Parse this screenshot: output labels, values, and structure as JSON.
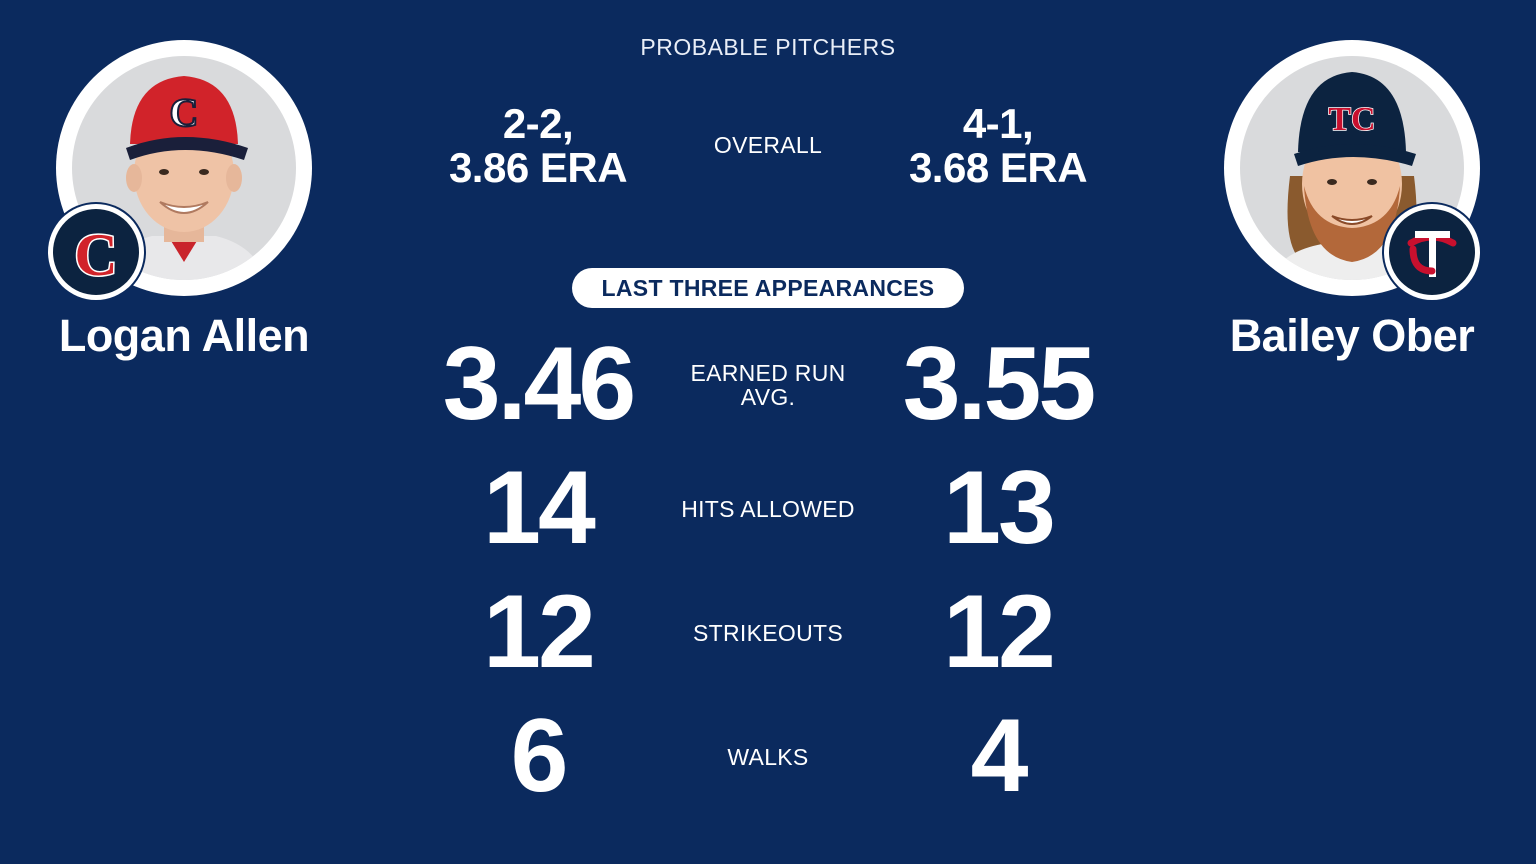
{
  "header": {
    "title": "PROBABLE PITCHERS"
  },
  "left_player": {
    "name": "Logan Allen",
    "team_icon": "cleveland-c-logo",
    "cap_color": "#d1232a",
    "overall_line1": "2-2,",
    "overall_line2": "3.86 ERA",
    "era": "3.46",
    "hits_allowed": "14",
    "strikeouts": "12",
    "walks": "6"
  },
  "right_player": {
    "name": "Bailey Ober",
    "team_icon": "twins-tc-logo",
    "cap_color": "#0c2340",
    "overall_line1": "4-1,",
    "overall_line2": "3.68 ERA",
    "era": "3.55",
    "hits_allowed": "13",
    "strikeouts": "12",
    "walks": "4"
  },
  "labels": {
    "overall": "OVERALL",
    "section": "LAST THREE APPEARANCES",
    "era_line1": "EARNED RUN",
    "era_line2": "AVG.",
    "hits": "HITS ALLOWED",
    "strikeouts": "STRIKEOUTS",
    "walks": "WALKS"
  },
  "colors": {
    "background": "#0b2a5e",
    "cleveland_red": "#d1232a",
    "twins_navy": "#0c2340",
    "twins_red": "#c8102e"
  }
}
